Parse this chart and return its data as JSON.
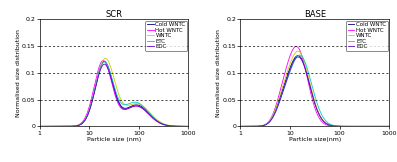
{
  "subplot_titles": [
    "SCR",
    "BASE"
  ],
  "xlabel_left": "Particle size (nm)",
  "xlabel_right": "Particle size(nm)",
  "ylabel": "Normalised size distribution",
  "ylim": [
    0,
    0.2
  ],
  "xlim": [
    1,
    1000
  ],
  "yticks": [
    0,
    0.05,
    0.1,
    0.15,
    0.2
  ],
  "ytick_labels": [
    "0",
    "0.05",
    "0.1",
    "0.15",
    "0.2"
  ],
  "hlines": [
    0.05,
    0.1,
    0.15
  ],
  "legend_labels": [
    "Cold WNTC",
    "Hot WNTC",
    "WNTC",
    "ETC",
    "EDC"
  ],
  "legend_colors": [
    "#000080",
    "#FF00FF",
    "#CCCC00",
    "#00CCCC",
    "#6600CC"
  ],
  "background_color": "#ffffff",
  "title_fontsize": 6,
  "label_fontsize": 4.5,
  "tick_fontsize": 4.5,
  "legend_fontsize": 4.0
}
